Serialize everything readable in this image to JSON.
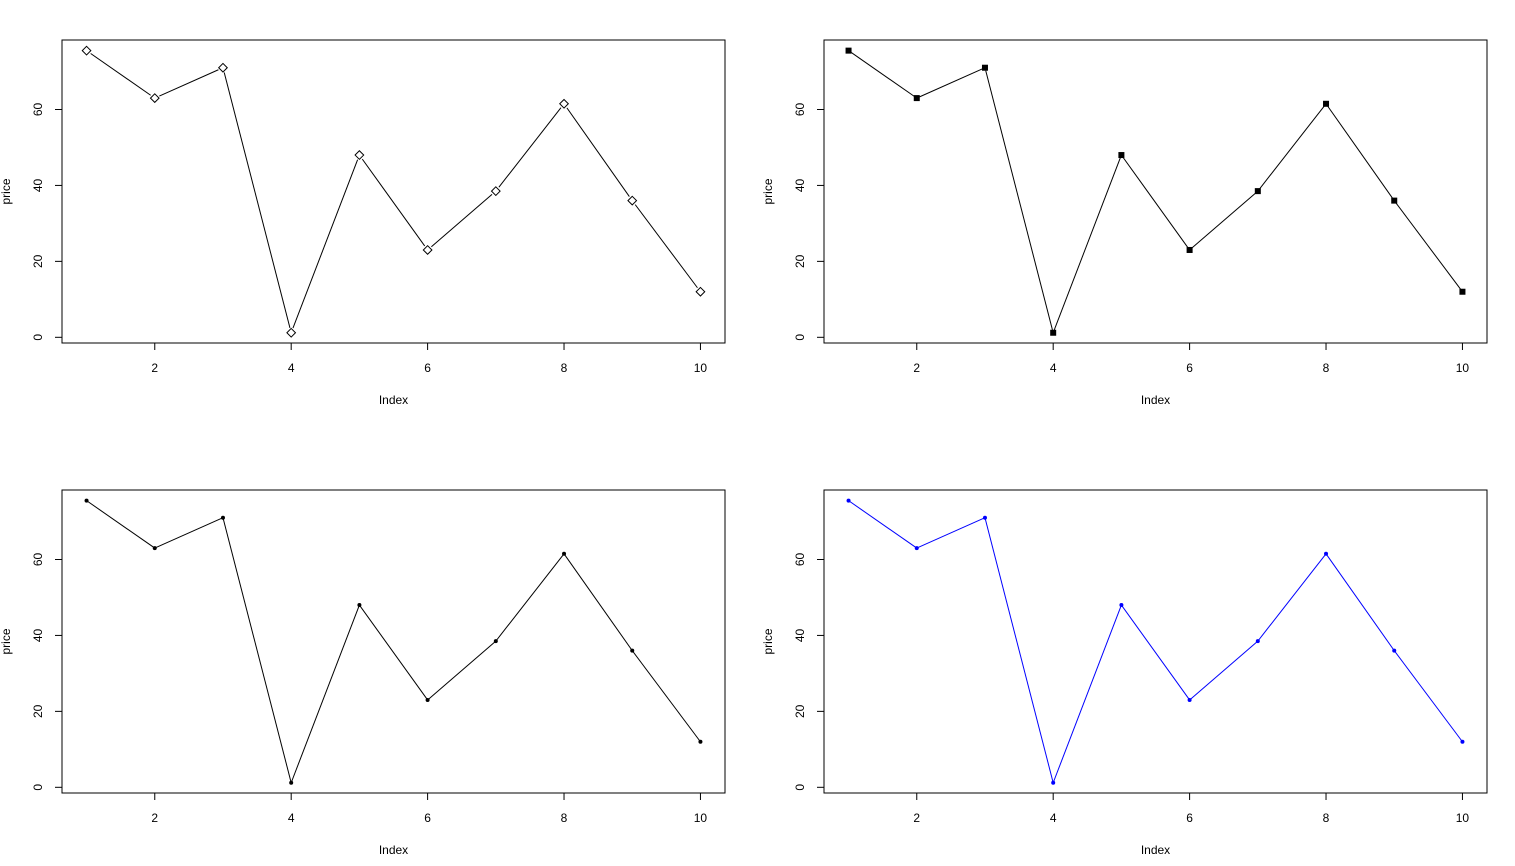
{
  "chart_data": [
    {
      "type": "line",
      "marker": "open-diamond",
      "line_color": "#000000",
      "marker_color": "#000000",
      "xlabel": "Index",
      "ylabel": "price",
      "x": [
        1,
        2,
        3,
        4,
        5,
        6,
        7,
        8,
        9,
        10
      ],
      "values": [
        75.5,
        63,
        71,
        1.2,
        48,
        23,
        38.5,
        61.5,
        36,
        12
      ],
      "xlim": [
        0.64,
        10.36
      ],
      "ylim": [
        -1.5,
        78.3
      ],
      "xticks": [
        2,
        4,
        6,
        8,
        10
      ],
      "yticks": [
        0,
        20,
        40,
        60
      ]
    },
    {
      "type": "line",
      "marker": "filled-square",
      "line_color": "#000000",
      "marker_color": "#000000",
      "xlabel": "Index",
      "ylabel": "price",
      "x": [
        1,
        2,
        3,
        4,
        5,
        6,
        7,
        8,
        9,
        10
      ],
      "values": [
        75.5,
        63,
        71,
        1.2,
        48,
        23,
        38.5,
        61.5,
        36,
        12
      ],
      "xlim": [
        0.64,
        10.36
      ],
      "ylim": [
        -1.5,
        78.3
      ],
      "xticks": [
        2,
        4,
        6,
        8,
        10
      ],
      "yticks": [
        0,
        20,
        40,
        60
      ]
    },
    {
      "type": "line",
      "marker": "small-dot",
      "line_color": "#000000",
      "marker_color": "#000000",
      "xlabel": "Index",
      "ylabel": "price",
      "x": [
        1,
        2,
        3,
        4,
        5,
        6,
        7,
        8,
        9,
        10
      ],
      "values": [
        75.5,
        63,
        71,
        1.2,
        48,
        23,
        38.5,
        61.5,
        36,
        12
      ],
      "xlim": [
        0.64,
        10.36
      ],
      "ylim": [
        -1.5,
        78.3
      ],
      "xticks": [
        2,
        4,
        6,
        8,
        10
      ],
      "yticks": [
        0,
        20,
        40,
        60
      ]
    },
    {
      "type": "line",
      "marker": "small-dot",
      "line_color": "#0000ff",
      "marker_color": "#0000ff",
      "xlabel": "Index",
      "ylabel": "price",
      "x": [
        1,
        2,
        3,
        4,
        5,
        6,
        7,
        8,
        9,
        10
      ],
      "values": [
        75.5,
        63,
        71,
        1.2,
        48,
        23,
        38.5,
        61.5,
        36,
        12
      ],
      "xlim": [
        0.64,
        10.36
      ],
      "ylim": [
        -1.5,
        78.3
      ],
      "xticks": [
        2,
        4,
        6,
        8,
        10
      ],
      "yticks": [
        0,
        20,
        40,
        60
      ]
    }
  ]
}
